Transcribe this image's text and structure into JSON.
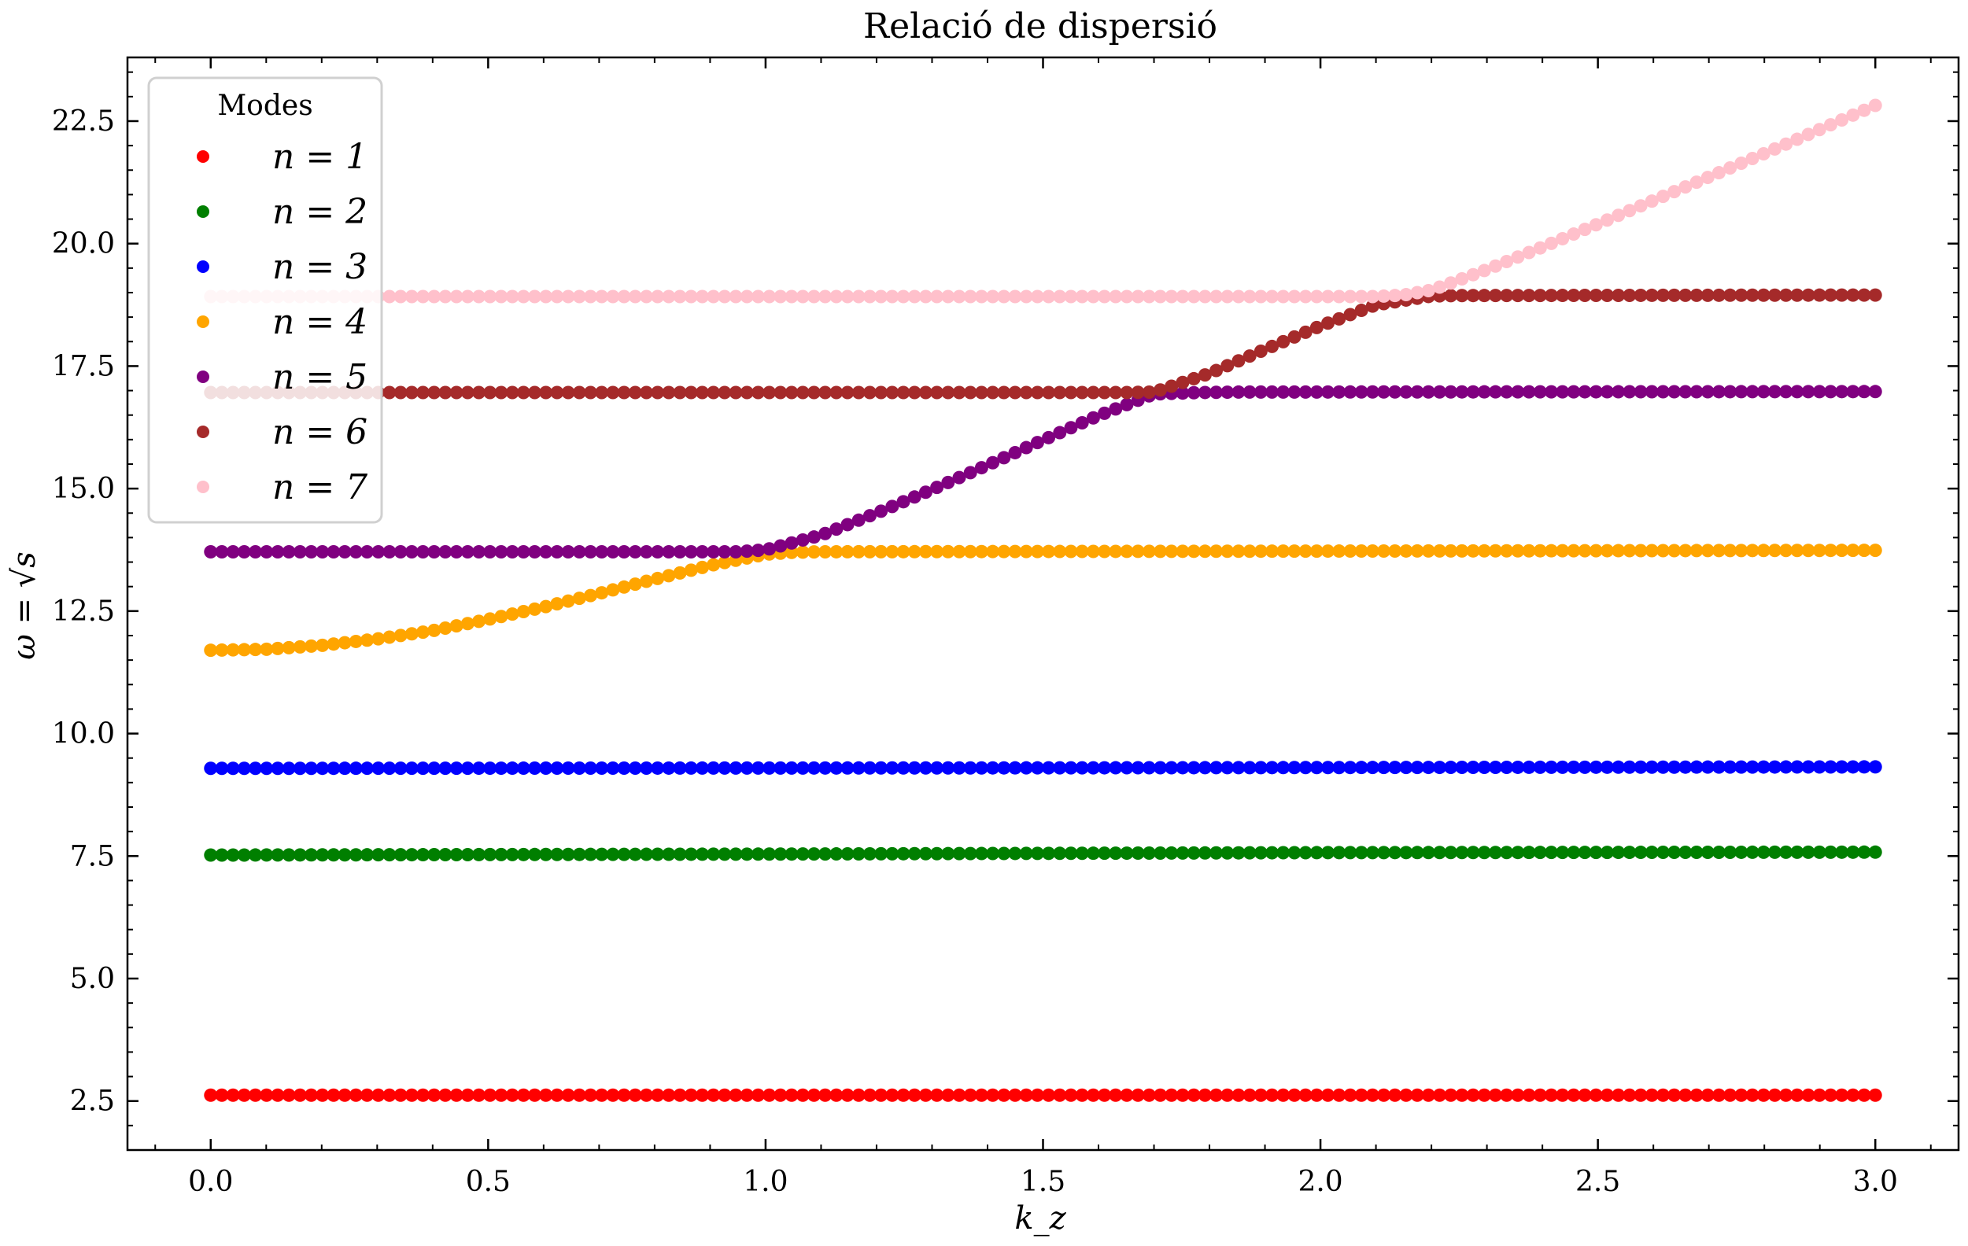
{
  "chart_data": {
    "type": "scatter",
    "title": "Relació de dispersió",
    "xlabel": "k_z",
    "ylabel": "ω = √s",
    "xlim": [
      -0.15,
      3.15
    ],
    "ylim": [
      1.5,
      23.8
    ],
    "x_ticks": [
      0.0,
      0.5,
      1.0,
      1.5,
      2.0,
      2.5,
      3.0
    ],
    "x_tick_labels": [
      "0.0",
      "0.5",
      "1.0",
      "1.5",
      "2.0",
      "2.5",
      "3.0"
    ],
    "y_ticks": [
      2.5,
      5.0,
      7.5,
      10.0,
      12.5,
      15.0,
      17.5,
      20.0,
      22.5
    ],
    "y_tick_labels": [
      "2.5",
      "5.0",
      "7.5",
      "10.0",
      "12.5",
      "15.0",
      "17.5",
      "20.0",
      "22.5"
    ],
    "grid": false,
    "legend": {
      "title": "Modes",
      "placement": "upper-left"
    },
    "x_start": 0.0,
    "x_end": 3.0,
    "points_per_series": 150,
    "series": [
      {
        "name": "n = 1",
        "color": "#ff0000",
        "x": [
          0.0,
          3.0
        ],
        "y": [
          2.62,
          2.62
        ]
      },
      {
        "name": "n = 2",
        "color": "#007f00",
        "x": [
          0.0,
          1.0,
          2.0,
          3.0
        ],
        "y": [
          7.52,
          7.54,
          7.57,
          7.58
        ]
      },
      {
        "name": "n = 3",
        "color": "#0000ff",
        "x": [
          0.0,
          1.5,
          3.0
        ],
        "y": [
          9.29,
          9.3,
          9.32
        ]
      },
      {
        "name": "n = 4",
        "color": "#ffa500",
        "x": [
          0.0,
          0.1,
          0.2,
          0.3,
          0.4,
          0.5,
          0.6,
          0.7,
          0.8,
          0.9,
          1.0,
          1.05,
          1.1,
          3.0
        ],
        "y": [
          11.7,
          11.72,
          11.8,
          11.93,
          12.1,
          12.33,
          12.58,
          12.86,
          13.15,
          13.43,
          13.66,
          13.7,
          13.71,
          13.74
        ]
      },
      {
        "name": "n = 5",
        "color": "#800080",
        "x": [
          0.0,
          0.95,
          1.0,
          1.1,
          1.2,
          1.3,
          1.4,
          1.5,
          1.6,
          1.7,
          1.78,
          1.85,
          3.0
        ],
        "y": [
          13.71,
          13.71,
          13.75,
          14.05,
          14.5,
          14.98,
          15.48,
          15.99,
          16.49,
          16.93,
          16.96,
          16.97,
          16.98
        ]
      },
      {
        "name": "n = 6",
        "color": "#a52a2a",
        "x": [
          0.0,
          1.65,
          1.7,
          1.8,
          1.9,
          2.0,
          2.1,
          2.2,
          2.25,
          3.0
        ],
        "y": [
          16.96,
          16.96,
          16.97,
          17.35,
          17.84,
          18.32,
          18.75,
          18.93,
          18.94,
          18.95
        ]
      },
      {
        "name": "n = 7",
        "color": "#ffc0cb",
        "x": [
          0.0,
          2.1,
          2.15,
          2.2,
          2.3,
          2.4,
          2.5,
          2.6,
          2.7,
          2.8,
          2.9,
          3.0
        ],
        "y": [
          18.92,
          18.92,
          18.95,
          19.05,
          19.47,
          19.93,
          20.4,
          20.88,
          21.36,
          21.84,
          22.33,
          22.82
        ]
      }
    ]
  }
}
